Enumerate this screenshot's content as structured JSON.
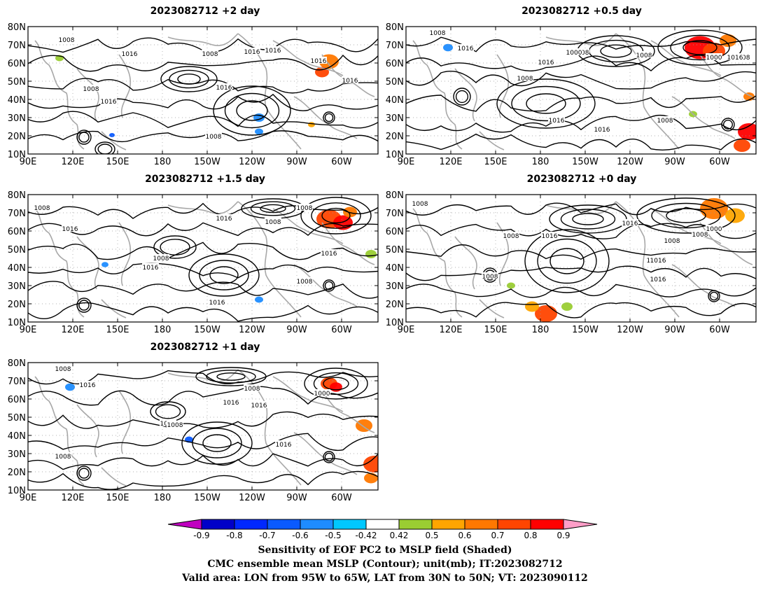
{
  "panels": [
    {
      "title": "2023082712 +2 day"
    },
    {
      "title": "2023082712 +0.5 day"
    },
    {
      "title": "2023082712 +1.5 day"
    },
    {
      "title": "2023082712 +0 day"
    },
    {
      "title": "2023082712 +1 day"
    }
  ],
  "axes": {
    "lat_labels": [
      "80N",
      "70N",
      "60N",
      "50N",
      "40N",
      "30N",
      "20N",
      "10N"
    ],
    "lon_labels": [
      "90E",
      "120E",
      "150E",
      "180",
      "150W",
      "120W",
      "90W",
      "60W"
    ]
  },
  "contour_labels": {
    "p0": [
      "1008",
      "1016",
      "1008",
      "1016",
      "1016",
      "1008",
      "1016",
      "1016",
      "1008",
      "1016",
      "1016"
    ],
    "p1": [
      "1008",
      "1016",
      "1008",
      "1000",
      "1008",
      "1016",
      "1008",
      "1008",
      "1016",
      "1016",
      "1008",
      "1000",
      "1016"
    ],
    "p2": [
      "1008",
      "1016",
      "1008",
      "1016",
      "1008",
      "1008",
      "1016",
      "1008",
      "1016",
      "1016"
    ],
    "p3": [
      "1008",
      "1008",
      "1016",
      "1016",
      "1008",
      "1008",
      "1000",
      "1016",
      "1016",
      "1016",
      "1008"
    ],
    "p4": [
      "1008",
      "1016",
      "1008",
      "1008",
      "1016",
      "1016",
      "1008",
      "1000",
      "1016",
      "1008"
    ]
  },
  "colorbar": {
    "labels": [
      "-0.9",
      "-0.8",
      "-0.7",
      "-0.6",
      "-0.5",
      "-0.42",
      "0.42",
      "0.5",
      "0.6",
      "0.7",
      "0.8",
      "0.9"
    ],
    "colors": [
      "#c000c0",
      "#0000c8",
      "#0028ff",
      "#0a5aff",
      "#1e8cff",
      "#00c8ff",
      "#ffffff",
      "#9acd32",
      "#ffa500",
      "#ff7800",
      "#ff4500",
      "#ff0000",
      "#ff9ec8"
    ]
  },
  "captions": [
    "Sensitivity of EOF PC2 to MSLP field (Shaded)",
    "CMC ensemble mean MSLP (Contour); unit(mb); IT:2023082712",
    "Valid area: LON from 95W to 65W, LAT from 30N to 50N; VT: 2023090112"
  ]
}
